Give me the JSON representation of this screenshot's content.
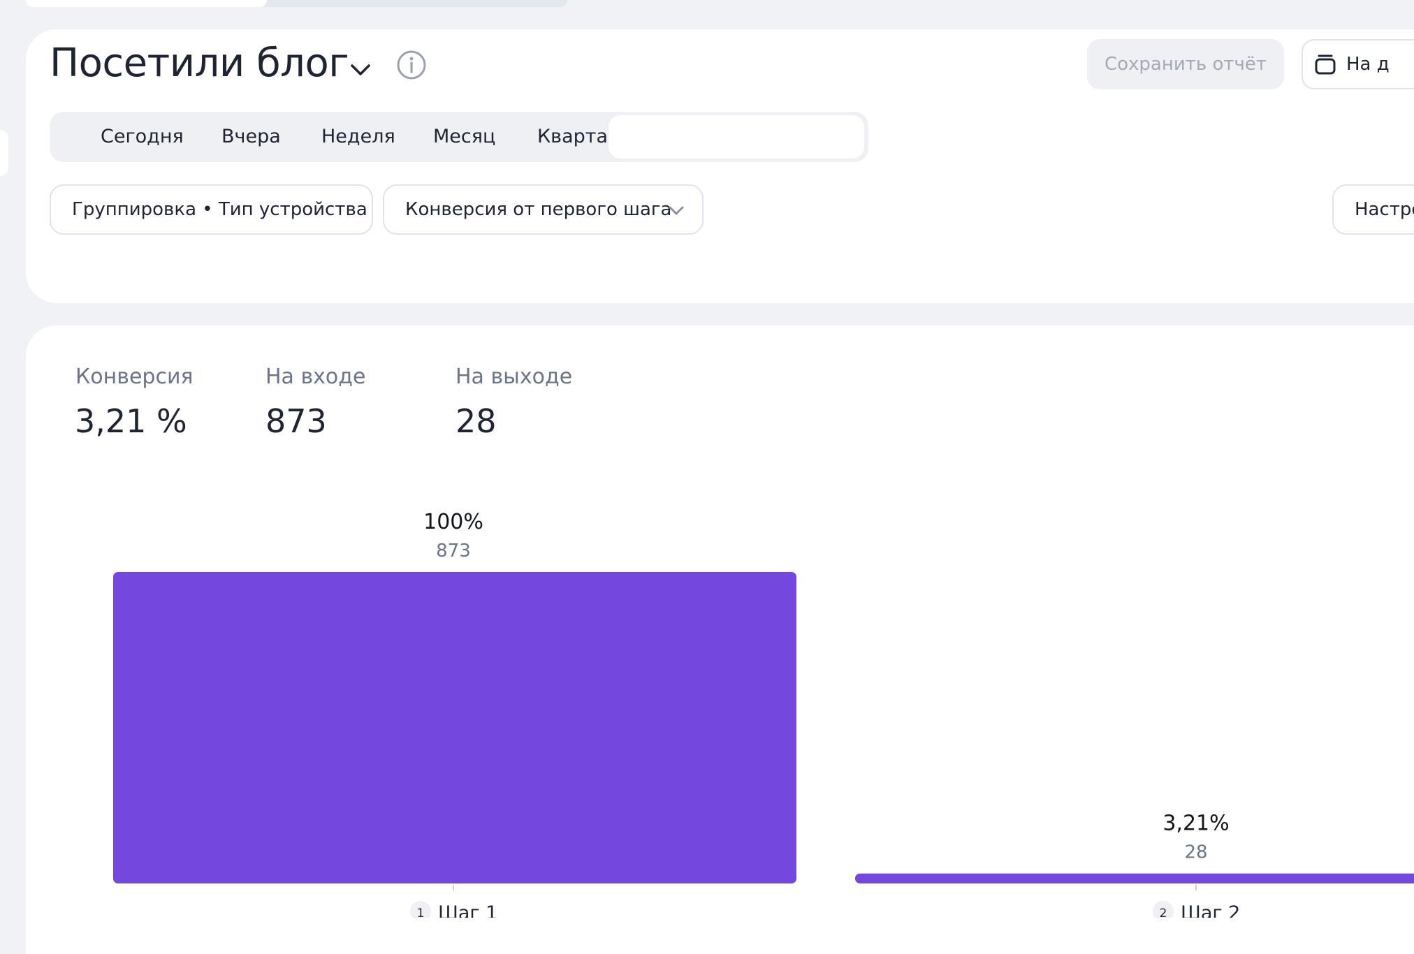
{
  "header": {
    "title": "Посетили блог",
    "save_label": "Сохранить отчёт",
    "dashboard_label": "На д"
  },
  "periods": {
    "tabs": [
      {
        "label": "Сегодня"
      },
      {
        "label": "Вчера"
      },
      {
        "label": "Неделя"
      },
      {
        "label": "Месяц"
      },
      {
        "label": "Квартал"
      }
    ]
  },
  "filters": {
    "grouping_label": "Группировка • Тип устройства",
    "conversion_mode_label": "Конверсия от первого шага",
    "settings_label": "Настро"
  },
  "metrics": {
    "conversion": {
      "label": "Конверсия",
      "value": "3,21 %"
    },
    "entry": {
      "label": "На входе",
      "value": "873"
    },
    "exit": {
      "label": "На выходе",
      "value": "28"
    }
  },
  "colors": {
    "accent": "#7448de",
    "muted_text": "#6c7489",
    "border": "#dfe3ea",
    "panel": "#eef0f4"
  },
  "chart_data": {
    "type": "bar",
    "categories": [
      "Шаг 1",
      "Шаг 2"
    ],
    "step_numbers": [
      "1",
      "2"
    ],
    "values": [
      873,
      28
    ],
    "percent_labels": [
      "100%",
      "3,21%"
    ],
    "value_labels": [
      "873",
      "28"
    ],
    "ylim": [
      0,
      873
    ],
    "grid": false
  }
}
